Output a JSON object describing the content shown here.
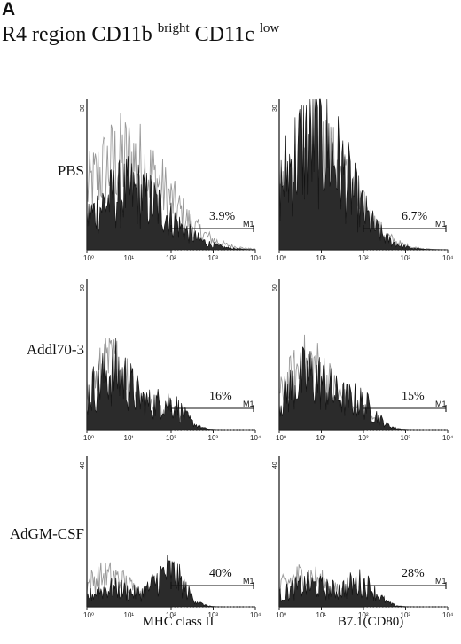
{
  "figure": {
    "panel_letter": "A",
    "title_main": "R4 region CD11b",
    "title_sup1": "bright",
    "title_mid": " CD11c",
    "title_sup2": "low"
  },
  "rows": [
    {
      "label": "PBS",
      "ymax": "30"
    },
    {
      "label": "Addl70-3",
      "ymax": "60"
    },
    {
      "label": "AdGM-CSF",
      "ymax": "40"
    }
  ],
  "columns": [
    {
      "label": "MHC class II"
    },
    {
      "label": "B7.1(CD80)"
    }
  ],
  "chart_data": {
    "type": "area",
    "description_axis": "log fluorescence intensity",
    "xscale": "log",
    "xlim": [
      1,
      10000
    ],
    "x_tick_labels": [
      "10⁰",
      "10¹",
      "10²",
      "10³",
      "10⁴"
    ],
    "gate_label": "M1",
    "gate_start": 100,
    "panels": [
      {
        "row": "PBS",
        "column": "MHC class II",
        "ylim": [
          0,
          30
        ],
        "gate_percent": "3.9%",
        "sample_peak": 10,
        "sample_spread": 0.9,
        "sample_height": 0.38,
        "sample_tail": 0.0,
        "control_peak": 8,
        "control_spread": 1.0,
        "control_height": 0.6,
        "control_tail": 0.0
      },
      {
        "row": "PBS",
        "column": "B7.1(CD80)",
        "ylim": [
          0,
          30
        ],
        "gate_percent": "6.7%",
        "sample_peak": 7,
        "sample_spread": 0.8,
        "sample_height": 0.72,
        "sample_tail": 0.0,
        "control_peak": 8,
        "control_spread": 0.85,
        "control_height": 0.6,
        "control_tail": 0.0
      },
      {
        "row": "Addl70-3",
        "column": "MHC class II",
        "ylim": [
          0,
          60
        ],
        "gate_percent": "16%",
        "sample_peak": 4,
        "sample_spread": 0.55,
        "sample_height": 0.38,
        "sample_tail": 0.16,
        "control_peak": 4,
        "control_spread": 0.55,
        "control_height": 0.42,
        "control_tail": 0.08
      },
      {
        "row": "Addl70-3",
        "column": "B7.1(CD80)",
        "ylim": [
          0,
          60
        ],
        "gate_percent": "15%",
        "sample_peak": 5,
        "sample_spread": 0.6,
        "sample_height": 0.35,
        "sample_tail": 0.14,
        "control_peak": 5,
        "control_spread": 0.6,
        "control_height": 0.42,
        "control_tail": 0.06
      },
      {
        "row": "AdGM-CSF",
        "column": "MHC class II",
        "ylim": [
          0,
          40
        ],
        "gate_percent": "40%",
        "sample_peak": 4,
        "sample_spread": 0.55,
        "sample_height": 0.12,
        "sample_tail": 0.22,
        "control_peak": 3,
        "control_spread": 0.6,
        "control_height": 0.2,
        "control_tail": 0.12
      },
      {
        "row": "AdGM-CSF",
        "column": "B7.1(CD80)",
        "ylim": [
          0,
          40
        ],
        "gate_percent": "28%",
        "sample_peak": 5,
        "sample_spread": 0.6,
        "sample_height": 0.14,
        "sample_tail": 0.14,
        "control_peak": 4,
        "control_spread": 0.6,
        "control_height": 0.2,
        "control_tail": 0.06
      }
    ]
  }
}
